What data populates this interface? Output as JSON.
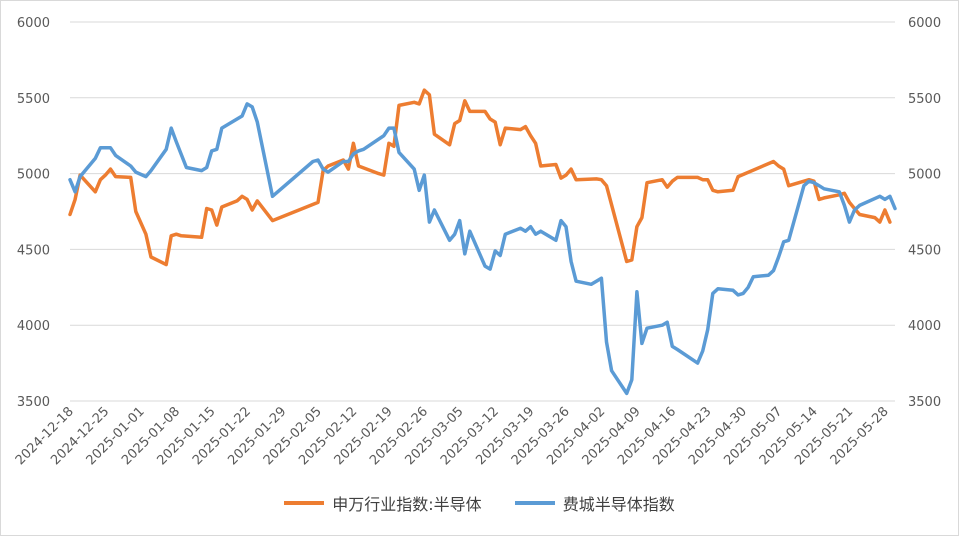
{
  "chart_data": {
    "type": "line",
    "title": "",
    "xlabel": "",
    "ylabel": "",
    "ylim": [
      3500,
      6000
    ],
    "y2lim": [
      3500,
      6000
    ],
    "yticks": [
      3500,
      4000,
      4500,
      5000,
      5500,
      6000
    ],
    "grid": "horizontal",
    "legend_position": "bottom",
    "x_tick_labels": [
      "2024-12-18",
      "2024-12-25",
      "2025-01-01",
      "2025-01-08",
      "2025-01-15",
      "2025-01-22",
      "2025-01-29",
      "2025-02-05",
      "2025-02-12",
      "2025-02-19",
      "2025-02-26",
      "2025-03-05",
      "2025-03-12",
      "2025-03-19",
      "2025-03-26",
      "2025-04-02",
      "2025-04-09",
      "2025-04-16",
      "2025-04-23",
      "2025-04-30",
      "2025-05-07",
      "2025-05-14",
      "2025-05-21",
      "2025-05-28"
    ],
    "series": [
      {
        "name": "申万行业指数:半导体",
        "color": "#ed7d31",
        "axis": "left",
        "points": [
          [
            "2024-12-18",
            4730
          ],
          [
            "2024-12-19",
            4830
          ],
          [
            "2024-12-20",
            4990
          ],
          [
            "2024-12-23",
            4880
          ],
          [
            "2024-12-24",
            4960
          ],
          [
            "2024-12-25",
            4990
          ],
          [
            "2024-12-26",
            5030
          ],
          [
            "2024-12-27",
            4980
          ],
          [
            "2024-12-30",
            4975
          ],
          [
            "2024-12-31",
            4750
          ],
          [
            "2025-01-02",
            4600
          ],
          [
            "2025-01-03",
            4450
          ],
          [
            "2025-01-06",
            4400
          ],
          [
            "2025-01-07",
            4590
          ],
          [
            "2025-01-08",
            4600
          ],
          [
            "2025-01-09",
            4590
          ],
          [
            "2025-01-13",
            4580
          ],
          [
            "2025-01-14",
            4770
          ],
          [
            "2025-01-15",
            4760
          ],
          [
            "2025-01-16",
            4660
          ],
          [
            "2025-01-17",
            4780
          ],
          [
            "2025-01-20",
            4820
          ],
          [
            "2025-01-21",
            4850
          ],
          [
            "2025-01-22",
            4830
          ],
          [
            "2025-01-23",
            4760
          ],
          [
            "2025-01-24",
            4820
          ],
          [
            "2025-01-27",
            4690
          ],
          [
            "2025-02-05",
            4810
          ],
          [
            "2025-02-06",
            5020
          ],
          [
            "2025-02-07",
            5050
          ],
          [
            "2025-02-10",
            5090
          ],
          [
            "2025-02-11",
            5030
          ],
          [
            "2025-02-12",
            5200
          ],
          [
            "2025-02-13",
            5050
          ],
          [
            "2025-02-17",
            5000
          ],
          [
            "2025-02-18",
            4990
          ],
          [
            "2025-02-19",
            5200
          ],
          [
            "2025-02-20",
            5180
          ],
          [
            "2025-02-21",
            5450
          ],
          [
            "2025-02-24",
            5470
          ],
          [
            "2025-02-25",
            5460
          ],
          [
            "2025-02-26",
            5550
          ],
          [
            "2025-02-27",
            5520
          ],
          [
            "2025-02-28",
            5260
          ],
          [
            "2025-03-03",
            5190
          ],
          [
            "2025-03-04",
            5330
          ],
          [
            "2025-03-05",
            5350
          ],
          [
            "2025-03-06",
            5480
          ],
          [
            "2025-03-07",
            5410
          ],
          [
            "2025-03-10",
            5410
          ],
          [
            "2025-03-11",
            5360
          ],
          [
            "2025-03-12",
            5340
          ],
          [
            "2025-03-13",
            5190
          ],
          [
            "2025-03-14",
            5300
          ],
          [
            "2025-03-17",
            5290
          ],
          [
            "2025-03-18",
            5310
          ],
          [
            "2025-03-19",
            5250
          ],
          [
            "2025-03-20",
            5200
          ],
          [
            "2025-03-21",
            5050
          ],
          [
            "2025-03-24",
            5060
          ],
          [
            "2025-03-25",
            4970
          ],
          [
            "2025-03-26",
            4990
          ],
          [
            "2025-03-27",
            5030
          ],
          [
            "2025-03-28",
            4960
          ],
          [
            "2025-04-01",
            4965
          ],
          [
            "2025-04-02",
            4960
          ],
          [
            "2025-04-03",
            4920
          ],
          [
            "2025-04-07",
            4420
          ],
          [
            "2025-04-08",
            4430
          ],
          [
            "2025-04-09",
            4650
          ],
          [
            "2025-04-10",
            4710
          ],
          [
            "2025-04-11",
            4940
          ],
          [
            "2025-04-14",
            4960
          ],
          [
            "2025-04-15",
            4910
          ],
          [
            "2025-04-16",
            4950
          ],
          [
            "2025-04-17",
            4975
          ],
          [
            "2025-04-21",
            4975
          ],
          [
            "2025-04-22",
            4960
          ],
          [
            "2025-04-23",
            4960
          ],
          [
            "2025-04-24",
            4890
          ],
          [
            "2025-04-25",
            4880
          ],
          [
            "2025-04-28",
            4890
          ],
          [
            "2025-04-29",
            4980
          ],
          [
            "2025-05-06",
            5080
          ],
          [
            "2025-05-07",
            5050
          ],
          [
            "2025-05-08",
            5030
          ],
          [
            "2025-05-09",
            4920
          ],
          [
            "2025-05-12",
            4950
          ],
          [
            "2025-05-13",
            4960
          ],
          [
            "2025-05-14",
            4950
          ],
          [
            "2025-05-15",
            4830
          ],
          [
            "2025-05-16",
            4840
          ],
          [
            "2025-05-19",
            4860
          ],
          [
            "2025-05-20",
            4870
          ],
          [
            "2025-05-21",
            4810
          ],
          [
            "2025-05-22",
            4770
          ],
          [
            "2025-05-23",
            4730
          ],
          [
            "2025-05-26",
            4710
          ],
          [
            "2025-05-27",
            4680
          ],
          [
            "2025-05-28",
            4760
          ],
          [
            "2025-05-29",
            4680
          ]
        ]
      },
      {
        "name": "费城半导体指数",
        "color": "#5b9bd5",
        "axis": "right",
        "points": [
          [
            "2024-12-18",
            4960
          ],
          [
            "2024-12-19",
            4880
          ],
          [
            "2024-12-20",
            4980
          ],
          [
            "2024-12-23",
            5100
          ],
          [
            "2024-12-24",
            5170
          ],
          [
            "2024-12-26",
            5170
          ],
          [
            "2024-12-27",
            5120
          ],
          [
            "2024-12-30",
            5050
          ],
          [
            "2024-12-31",
            5010
          ],
          [
            "2025-01-02",
            4980
          ],
          [
            "2025-01-03",
            5020
          ],
          [
            "2025-01-06",
            5160
          ],
          [
            "2025-01-07",
            5300
          ],
          [
            "2025-01-08",
            5210
          ],
          [
            "2025-01-10",
            5040
          ],
          [
            "2025-01-13",
            5020
          ],
          [
            "2025-01-14",
            5040
          ],
          [
            "2025-01-15",
            5150
          ],
          [
            "2025-01-16",
            5160
          ],
          [
            "2025-01-17",
            5300
          ],
          [
            "2025-01-21",
            5380
          ],
          [
            "2025-01-22",
            5460
          ],
          [
            "2025-01-23",
            5440
          ],
          [
            "2025-01-24",
            5340
          ],
          [
            "2025-01-27",
            4850
          ],
          [
            "2025-02-04",
            5080
          ],
          [
            "2025-02-05",
            5090
          ],
          [
            "2025-02-06",
            5030
          ],
          [
            "2025-02-07",
            5010
          ],
          [
            "2025-02-10",
            5080
          ],
          [
            "2025-02-11",
            5080
          ],
          [
            "2025-02-12",
            5130
          ],
          [
            "2025-02-13",
            5150
          ],
          [
            "2025-02-14",
            5160
          ],
          [
            "2025-02-18",
            5250
          ],
          [
            "2025-02-19",
            5300
          ],
          [
            "2025-02-20",
            5300
          ],
          [
            "2025-02-21",
            5140
          ],
          [
            "2025-02-24",
            5030
          ],
          [
            "2025-02-25",
            4890
          ],
          [
            "2025-02-26",
            4990
          ],
          [
            "2025-02-27",
            4680
          ],
          [
            "2025-02-28",
            4760
          ],
          [
            "2025-03-03",
            4560
          ],
          [
            "2025-03-04",
            4600
          ],
          [
            "2025-03-05",
            4690
          ],
          [
            "2025-03-06",
            4470
          ],
          [
            "2025-03-07",
            4620
          ],
          [
            "2025-03-10",
            4390
          ],
          [
            "2025-03-11",
            4370
          ],
          [
            "2025-03-12",
            4490
          ],
          [
            "2025-03-13",
            4460
          ],
          [
            "2025-03-14",
            4600
          ],
          [
            "2025-03-17",
            4640
          ],
          [
            "2025-03-18",
            4620
          ],
          [
            "2025-03-19",
            4650
          ],
          [
            "2025-03-20",
            4600
          ],
          [
            "2025-03-21",
            4620
          ],
          [
            "2025-03-24",
            4560
          ],
          [
            "2025-03-25",
            4690
          ],
          [
            "2025-03-26",
            4650
          ],
          [
            "2025-03-27",
            4420
          ],
          [
            "2025-03-28",
            4290
          ],
          [
            "2025-03-31",
            4270
          ],
          [
            "2025-04-01",
            4290
          ],
          [
            "2025-04-02",
            4310
          ],
          [
            "2025-04-03",
            3890
          ],
          [
            "2025-04-04",
            3700
          ],
          [
            "2025-04-07",
            3550
          ],
          [
            "2025-04-08",
            3640
          ],
          [
            "2025-04-09",
            4220
          ],
          [
            "2025-04-10",
            3880
          ],
          [
            "2025-04-11",
            3980
          ],
          [
            "2025-04-14",
            4000
          ],
          [
            "2025-04-15",
            4020
          ],
          [
            "2025-04-16",
            3860
          ],
          [
            "2025-04-17",
            3840
          ],
          [
            "2025-04-21",
            3750
          ],
          [
            "2025-04-22",
            3830
          ],
          [
            "2025-04-23",
            3970
          ],
          [
            "2025-04-24",
            4210
          ],
          [
            "2025-04-25",
            4240
          ],
          [
            "2025-04-28",
            4230
          ],
          [
            "2025-04-29",
            4200
          ],
          [
            "2025-04-30",
            4210
          ],
          [
            "2025-05-01",
            4250
          ],
          [
            "2025-05-02",
            4320
          ],
          [
            "2025-05-05",
            4330
          ],
          [
            "2025-05-06",
            4360
          ],
          [
            "2025-05-07",
            4450
          ],
          [
            "2025-05-08",
            4550
          ],
          [
            "2025-05-09",
            4560
          ],
          [
            "2025-05-12",
            4920
          ],
          [
            "2025-05-13",
            4950
          ],
          [
            "2025-05-14",
            4940
          ],
          [
            "2025-05-15",
            4920
          ],
          [
            "2025-05-16",
            4900
          ],
          [
            "2025-05-19",
            4880
          ],
          [
            "2025-05-20",
            4790
          ],
          [
            "2025-05-21",
            4680
          ],
          [
            "2025-05-22",
            4760
          ],
          [
            "2025-05-23",
            4790
          ],
          [
            "2025-05-27",
            4850
          ],
          [
            "2025-05-28",
            4830
          ],
          [
            "2025-05-29",
            4850
          ],
          [
            "2025-05-30",
            4770
          ]
        ]
      }
    ]
  }
}
